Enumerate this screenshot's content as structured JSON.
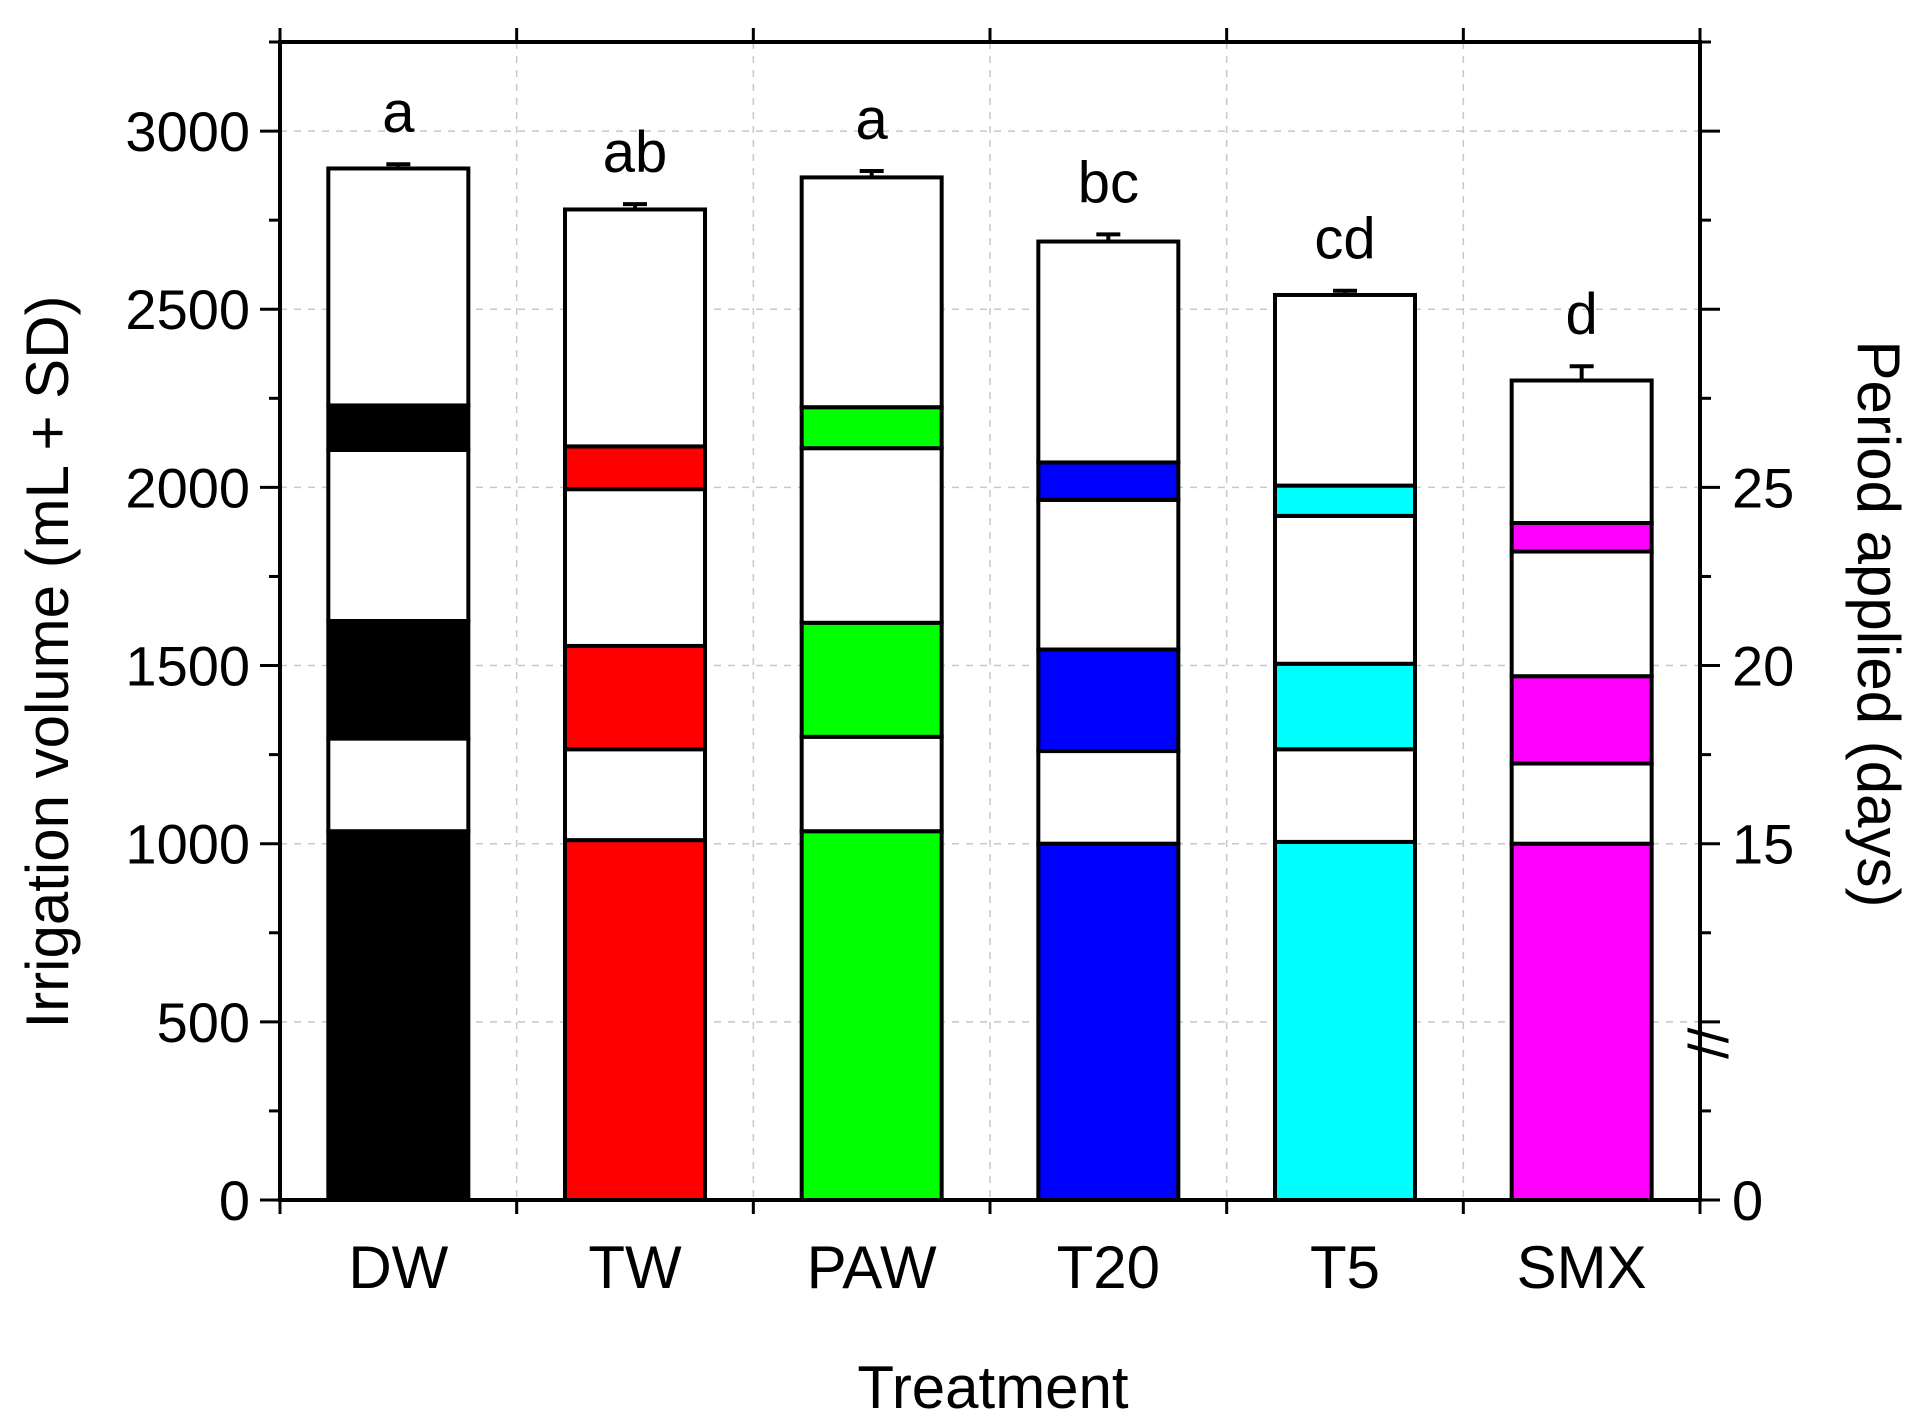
{
  "chart_data": {
    "type": "bar",
    "stacked": true,
    "xlabel": "Treatment",
    "ylabel": "Irrigation volume (mL + SD)",
    "y2label": "Period applied (days)",
    "ylim": [
      0,
      3250
    ],
    "yticks": [
      0,
      500,
      1000,
      1500,
      2000,
      2500,
      3000
    ],
    "y_minor_step": 250,
    "y2_axis": {
      "tick_labels": [
        "0",
        "15",
        "20",
        "25"
      ],
      "tick_values": [
        0,
        15,
        20,
        25
      ],
      "break_mark": "//",
      "note": "days 15–25 share the volume scale (15 days ≈ 1000 mL, 5 days per 500 mL)"
    },
    "grid": true,
    "categories": [
      "DW",
      "TW",
      "PAW",
      "T20",
      "T5",
      "SMX"
    ],
    "colors": {
      "DW": "#000000",
      "TW": "#ff0000",
      "PAW": "#00ff00",
      "T20": "#0000ff",
      "T5": "#00ffff",
      "SMX": "#ff00ff"
    },
    "bars": [
      {
        "category": "DW",
        "total": 2895,
        "sd": 12,
        "significance": "a",
        "segment_tops": [
          1035,
          1295,
          1625,
          2105,
          2230,
          2895
        ],
        "filled": [
          true,
          false,
          true,
          false,
          true,
          false
        ]
      },
      {
        "category": "TW",
        "total": 2780,
        "sd": 15,
        "significance": "ab",
        "segment_tops": [
          1010,
          1265,
          1555,
          1995,
          2115,
          2780
        ],
        "filled": [
          true,
          false,
          true,
          false,
          true,
          false
        ]
      },
      {
        "category": "PAW",
        "total": 2870,
        "sd": 18,
        "significance": "a",
        "segment_tops": [
          1035,
          1300,
          1620,
          2110,
          2225,
          2870
        ],
        "filled": [
          true,
          false,
          true,
          false,
          true,
          false
        ]
      },
      {
        "category": "T20",
        "total": 2690,
        "sd": 20,
        "significance": "bc",
        "segment_tops": [
          1000,
          1260,
          1545,
          1965,
          2070,
          2690
        ],
        "filled": [
          true,
          false,
          true,
          false,
          true,
          false
        ]
      },
      {
        "category": "T5",
        "total": 2540,
        "sd": 12,
        "significance": "cd",
        "segment_tops": [
          1005,
          1265,
          1505,
          1920,
          2005,
          2540
        ],
        "filled": [
          true,
          false,
          true,
          false,
          true,
          false
        ]
      },
      {
        "category": "SMX",
        "total": 2300,
        "sd": 40,
        "significance": "d",
        "segment_tops": [
          1000,
          1225,
          1470,
          1820,
          1900,
          2300
        ],
        "filled": [
          true,
          false,
          true,
          false,
          true,
          false
        ]
      }
    ]
  }
}
